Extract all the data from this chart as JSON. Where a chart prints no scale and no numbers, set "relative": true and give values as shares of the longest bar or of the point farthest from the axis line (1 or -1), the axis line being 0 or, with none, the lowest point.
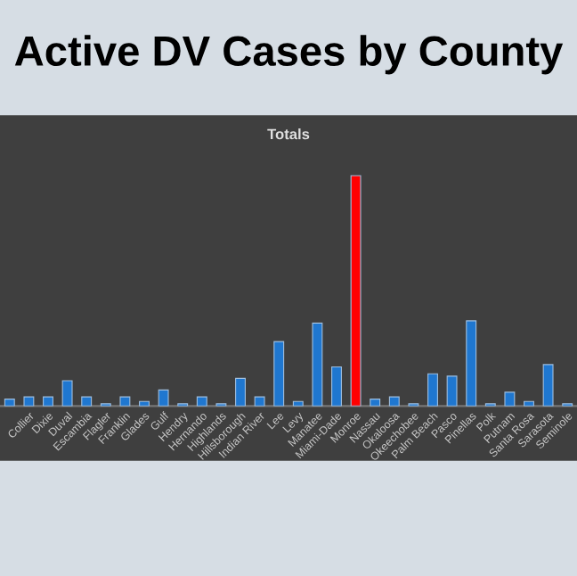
{
  "chart_data": {
    "type": "bar",
    "title": "Active DV Cases by County",
    "subtitle": "Totals",
    "relative": true,
    "categories": [
      null,
      "Collier",
      "Dixie",
      "Duval",
      "Escambia",
      "Flagler",
      "Franklin",
      "Glades",
      "Gulf",
      "Hendry",
      "Hernando",
      "Highlands",
      "Hillsborough",
      "Indian River",
      "Lee",
      "Levy",
      "Manatee",
      "Miami-Dade",
      "Monroe",
      "Nassau",
      "Okaloosa",
      "Okeechobee",
      "Palm Beach",
      "Pasco",
      "Pinellas",
      "Polk",
      "Putnam",
      "Santa Rosa",
      "Sarasota",
      "Seminole"
    ],
    "values": [
      0.03,
      0.04,
      0.04,
      0.11,
      0.04,
      0.01,
      0.04,
      0.02,
      0.07,
      0.01,
      0.04,
      0.01,
      0.12,
      0.04,
      0.28,
      0.02,
      0.36,
      0.17,
      1,
      0.03,
      0.04,
      0.01,
      0.14,
      0.13,
      0.37,
      0.01,
      0.06,
      0.02,
      0.18,
      0.01
    ],
    "colors": [
      "#1f77d0",
      "#1f77d0",
      "#1f77d0",
      "#1f77d0",
      "#1f77d0",
      "#1f77d0",
      "#1f77d0",
      "#1f77d0",
      "#1f77d0",
      "#1f77d0",
      "#1f77d0",
      "#1f77d0",
      "#1f77d0",
      "#1f77d0",
      "#1f77d0",
      "#1f77d0",
      "#1f77d0",
      "#1f77d0",
      "#ff0000",
      "#1f77d0",
      "#1f77d0",
      "#1f77d0",
      "#1f77d0",
      "#1f77d0",
      "#1f77d0",
      "#1f77d0",
      "#1f77d0",
      "#1f77d0",
      "#1f77d0",
      "#1f77d0"
    ]
  }
}
